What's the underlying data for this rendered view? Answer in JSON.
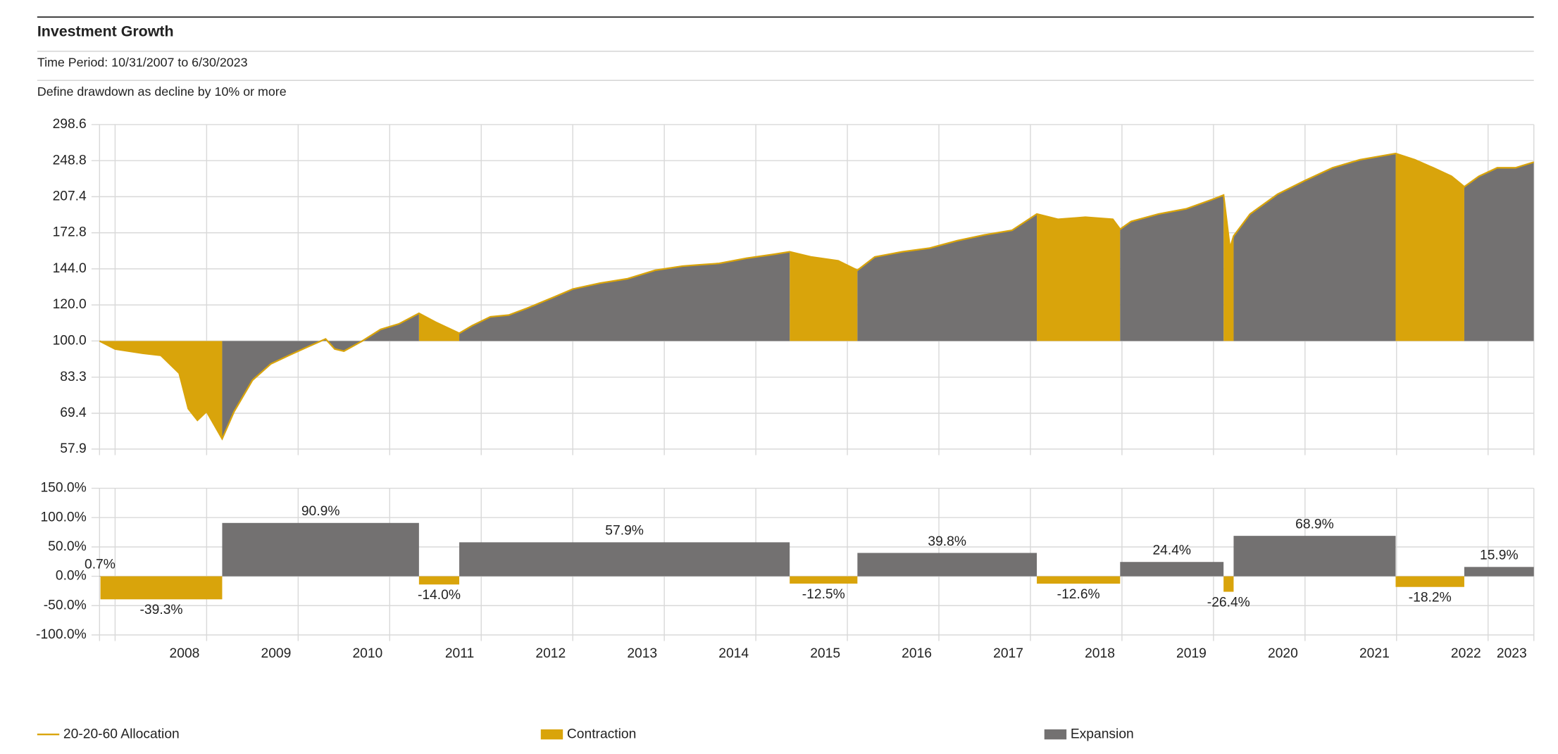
{
  "header": {
    "title": "Investment Growth",
    "subtitle": "Time Period: 10/31/2007 to 6/30/2023",
    "note": "Define drawdown as decline by 10% or more"
  },
  "chart_data": [
    {
      "type": "line",
      "yscale": "log",
      "grid": true,
      "xlim": [
        2007.83,
        2023.5
      ],
      "ylim": [
        57.9,
        298.6
      ],
      "yticks": [
        57.9,
        69.4,
        83.3,
        {
          "value": 100,
          "label": "100.0"
        },
        {
          "value": 120,
          "label": "120.0"
        },
        {
          "value": 144,
          "label": "144.0"
        },
        172.8,
        207.4,
        248.8,
        298.6
      ],
      "x": [
        2007.83,
        2008.0,
        2008.3,
        2008.5,
        2008.7,
        2008.8,
        2008.9,
        2009.0,
        2009.17,
        2009.3,
        2009.5,
        2009.7,
        2009.9,
        2010.1,
        2010.3,
        2010.4,
        2010.5,
        2010.7,
        2010.9,
        2011.1,
        2011.32,
        2011.5,
        2011.76,
        2011.9,
        2012.1,
        2012.3,
        2012.5,
        2012.8,
        2013.0,
        2013.3,
        2013.6,
        2013.9,
        2014.2,
        2014.4,
        2014.6,
        2014.9,
        2015.2,
        2015.37,
        2015.6,
        2015.9,
        2016.11,
        2016.3,
        2016.6,
        2016.9,
        2017.2,
        2017.5,
        2017.8,
        2018.07,
        2018.3,
        2018.6,
        2018.9,
        2018.98,
        2019.1,
        2019.4,
        2019.7,
        2020.0,
        2020.11,
        2020.18,
        2020.22,
        2020.4,
        2020.7,
        2021.0,
        2021.3,
        2021.6,
        2021.99,
        2022.2,
        2022.4,
        2022.6,
        2022.74,
        2022.9,
        2023.1,
        2023.3,
        2023.5
      ],
      "series": [
        {
          "name": "20-20-60 Allocation",
          "color": "#d9a40b",
          "values": [
            100,
            96,
            94,
            93,
            85,
            71,
            67,
            70,
            61,
            70,
            82,
            89,
            93,
            97,
            101,
            96,
            95,
            100,
            106,
            109,
            115,
            110,
            104,
            108,
            113,
            114,
            118,
            125,
            130,
            134,
            137,
            143,
            146,
            147,
            148,
            152,
            155,
            157,
            153,
            150,
            143,
            153,
            157,
            160,
            166,
            171,
            175,
            190,
            185,
            187,
            185,
            176,
            183,
            190,
            195,
            205,
            209,
            160,
            170,
            190,
            210,
            225,
            240,
            250,
            258,
            250,
            240,
            230,
            218,
            230,
            240,
            240,
            247
          ]
        }
      ]
    },
    {
      "type": "bar",
      "grid": true,
      "xlim": [
        2007.83,
        2023.5
      ],
      "ylim": [
        -100,
        150
      ],
      "yticks": [
        {
          "value": -100,
          "label": "-100.0%"
        },
        {
          "value": -50,
          "label": "-50.0%"
        },
        {
          "value": 0,
          "label": "0.0%"
        },
        {
          "value": 50,
          "label": "50.0%"
        },
        {
          "value": 100,
          "label": "100.0%"
        },
        {
          "value": 150,
          "label": "150.0%"
        }
      ],
      "xticks": [
        2008,
        2009,
        2010,
        2011,
        2012,
        2013,
        2014,
        2015,
        2016,
        2017,
        2018,
        2019,
        2020,
        2021,
        2022,
        2023
      ],
      "series": [
        {
          "name": "Contraction",
          "color": "#d9a40b",
          "periods": [
            [
              2007.84,
              2009.17
            ],
            [
              2011.32,
              2011.76
            ],
            [
              2015.37,
              2016.11
            ],
            [
              2018.07,
              2018.98
            ],
            [
              2020.11,
              2020.22
            ],
            [
              2021.99,
              2022.74
            ]
          ],
          "values": [
            -39.3,
            -14.0,
            -12.5,
            -12.6,
            -26.4,
            -18.2
          ],
          "value_labels": [
            "-39.3%",
            "-14.0%",
            "-12.5%",
            "-12.6%",
            "-26.4%",
            "-18.2%"
          ]
        },
        {
          "name": "Expansion",
          "color": "#737171",
          "periods": [
            [
              2007.83,
              2007.84
            ],
            [
              2009.17,
              2011.32
            ],
            [
              2011.76,
              2015.37
            ],
            [
              2016.11,
              2018.07
            ],
            [
              2018.98,
              2020.11
            ],
            [
              2020.22,
              2021.99
            ],
            [
              2022.74,
              2023.5
            ]
          ],
          "values": [
            0.7,
            90.9,
            57.9,
            39.8,
            24.4,
            68.9,
            15.9
          ],
          "value_labels": [
            "0.7%",
            "90.9%",
            "57.9%",
            "39.8%",
            "24.4%",
            "68.9%",
            "15.9%"
          ]
        }
      ]
    }
  ]
}
